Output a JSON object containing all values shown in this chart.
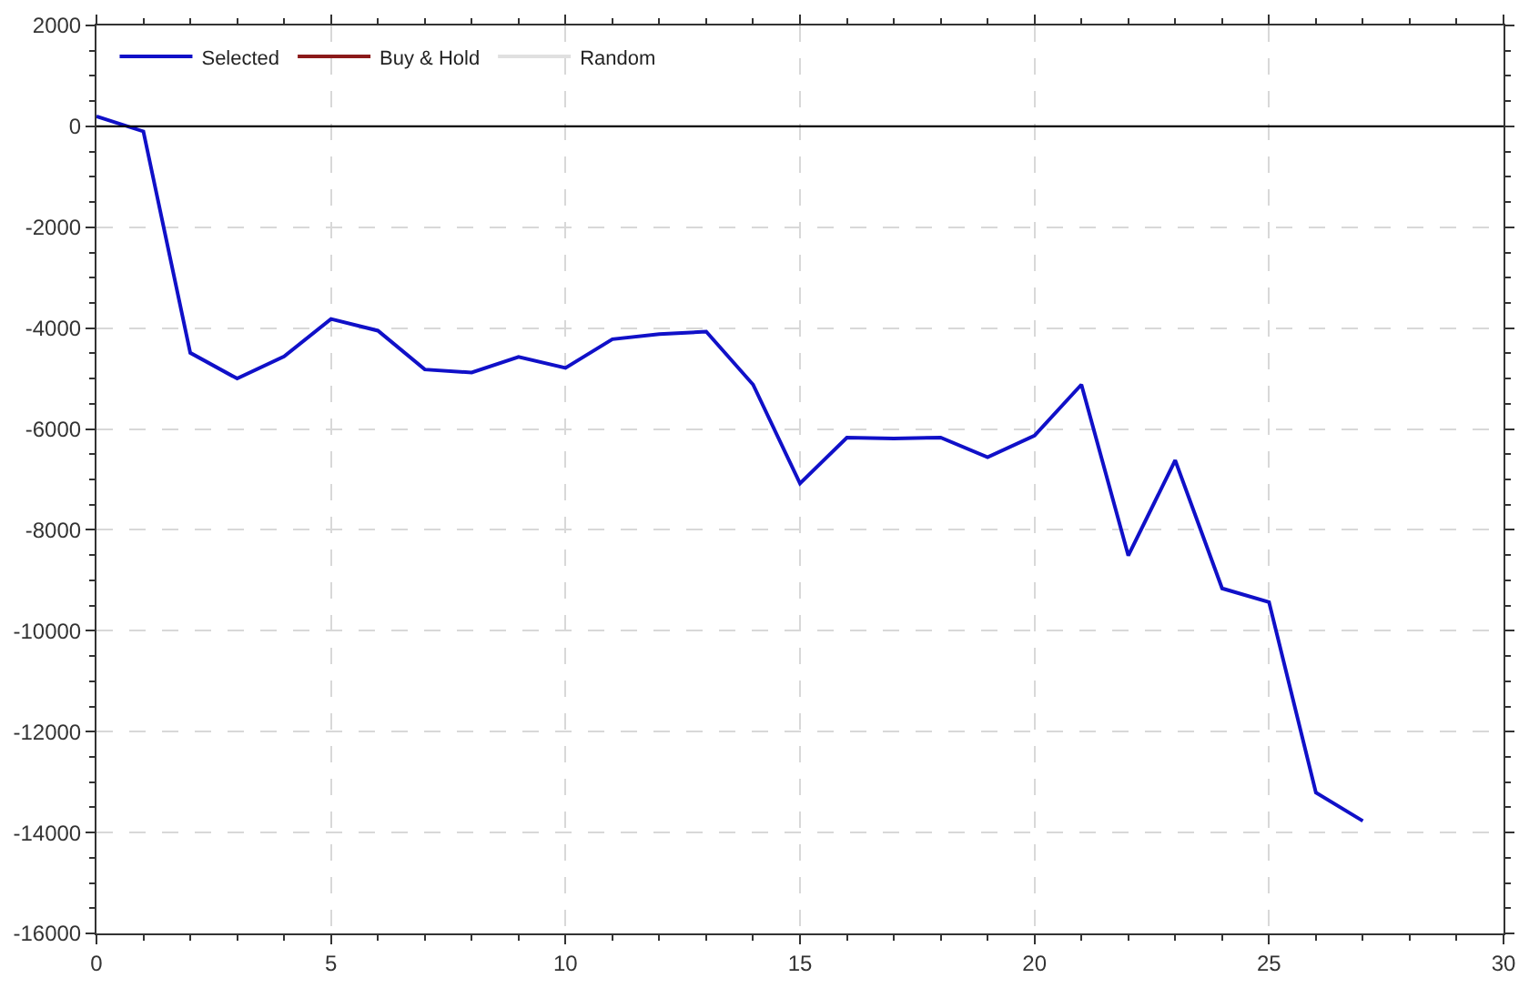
{
  "chart_data": {
    "type": "line",
    "x": [
      0,
      1,
      2,
      3,
      4,
      5,
      6,
      7,
      8,
      9,
      10,
      11,
      12,
      13,
      14,
      15,
      16,
      17,
      18,
      19,
      20,
      21,
      22,
      23,
      24,
      25,
      26,
      27
    ],
    "series": [
      {
        "name": "Selected",
        "color": "#1010c8",
        "values": [
          200,
          -100,
          -4490,
          -5000,
          -4560,
          -3820,
          -4050,
          -4820,
          -4880,
          -4570,
          -4790,
          -4220,
          -4120,
          -4070,
          -5120,
          -7080,
          -6170,
          -6190,
          -6170,
          -6560,
          -6130,
          -5120,
          -8510,
          -6620,
          -9160,
          -9430,
          -13210,
          -13770
        ]
      },
      {
        "name": "Buy & Hold",
        "color": "#8b1a1a",
        "values": [
          null,
          null,
          null,
          null,
          null,
          null,
          null,
          null,
          null,
          null,
          null,
          null,
          null,
          null,
          null,
          null,
          null,
          null,
          null,
          null,
          null,
          null,
          null,
          null,
          null,
          null,
          null,
          null
        ]
      },
      {
        "name": "Random",
        "color": "#e0e0e0",
        "values": [
          null,
          null,
          null,
          null,
          null,
          null,
          null,
          null,
          null,
          null,
          null,
          null,
          null,
          null,
          null,
          null,
          null,
          null,
          null,
          null,
          null,
          null,
          null,
          null,
          null,
          null,
          null,
          null
        ]
      }
    ],
    "xlim": [
      0,
      30
    ],
    "xticks": [
      0,
      {
        "value": 1,
        "label": null
      },
      {
        "value": 2,
        "label": null
      },
      {
        "value": 3,
        "label": null
      },
      {
        "value": 4,
        "label": null
      },
      5,
      {
        "value": 6,
        "label": null
      },
      {
        "value": 7,
        "label": null
      },
      {
        "value": 8,
        "label": null
      },
      {
        "value": 9,
        "label": null
      },
      10,
      {
        "value": 11,
        "label": null
      },
      {
        "value": 12,
        "label": null
      },
      {
        "value": 13,
        "label": null
      },
      {
        "value": 14,
        "label": null
      },
      15,
      {
        "value": 16,
        "label": null
      },
      {
        "value": 17,
        "label": null
      },
      {
        "value": 18,
        "label": null
      },
      {
        "value": 19,
        "label": null
      },
      20,
      {
        "value": 21,
        "label": null
      },
      {
        "value": 22,
        "label": null
      },
      {
        "value": 23,
        "label": null
      },
      {
        "value": 24,
        "label": null
      },
      25,
      {
        "value": 26,
        "label": null
      },
      {
        "value": 27,
        "label": null
      },
      {
        "value": 28,
        "label": null
      },
      {
        "value": 29,
        "label": null
      },
      30
    ],
    "ylim": [
      -16000,
      2000
    ],
    "yticks": [
      -16000,
      {
        "value": -15500,
        "label": null
      },
      {
        "value": -15000,
        "label": null
      },
      {
        "value": -14500,
        "label": null
      },
      -14000,
      {
        "value": -13500,
        "label": null
      },
      {
        "value": -13000,
        "label": null
      },
      {
        "value": -12500,
        "label": null
      },
      -12000,
      {
        "value": -11500,
        "label": null
      },
      {
        "value": -11000,
        "label": null
      },
      {
        "value": -10500,
        "label": null
      },
      -10000,
      {
        "value": -9500,
        "label": null
      },
      {
        "value": -9000,
        "label": null
      },
      {
        "value": -8500,
        "label": null
      },
      -8000,
      {
        "value": -7500,
        "label": null
      },
      {
        "value": -7000,
        "label": null
      },
      {
        "value": -6500,
        "label": null
      },
      -6000,
      {
        "value": -5500,
        "label": null
      },
      {
        "value": -5000,
        "label": null
      },
      {
        "value": -4500,
        "label": null
      },
      -4000,
      {
        "value": -3500,
        "label": null
      },
      {
        "value": -3000,
        "label": null
      },
      {
        "value": -2500,
        "label": null
      },
      -2000,
      {
        "value": -1500,
        "label": null
      },
      {
        "value": -1000,
        "label": null
      },
      {
        "value": -500,
        "label": null
      },
      0,
      {
        "value": 500,
        "label": null
      },
      {
        "value": 1000,
        "label": null
      },
      {
        "value": 1500,
        "label": null
      },
      2000
    ],
    "ref_lines": [
      {
        "axis": "y",
        "value": 0,
        "color": "#000000",
        "line_style": "solid"
      }
    ],
    "grid": true,
    "legend": "top left",
    "marker": "none",
    "line_style": "solid"
  }
}
